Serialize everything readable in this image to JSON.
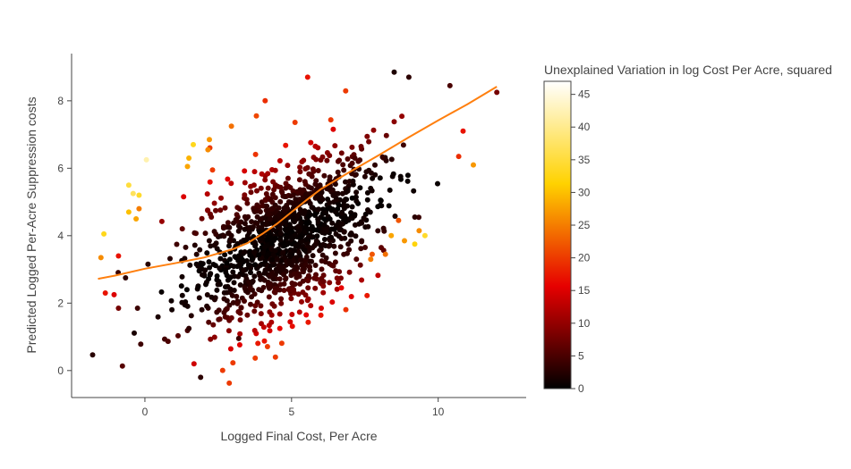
{
  "chart_data": {
    "type": "scatter",
    "xlabel": "Logged Final Cost, Per Acre",
    "ylabel": "Predicted Logged Per-Acre Suppression costs",
    "xlim": [
      -2.5,
      13.0
    ],
    "ylim": [
      -0.8,
      9.4
    ],
    "x_ticks": [
      0,
      5,
      10
    ],
    "y_ticks": [
      0,
      2,
      4,
      6,
      8
    ],
    "grid": false,
    "colorbar": {
      "title": "Unexplained Variation in log Cost Per Acre, squared",
      "range": [
        0,
        47
      ],
      "ticks": [
        0,
        5,
        10,
        15,
        20,
        25,
        30,
        35,
        40,
        45
      ],
      "colorscale": [
        "#000000",
        "#e60000",
        "#ffd200",
        "#ffffff"
      ]
    },
    "trend_line": {
      "color": "#ff7f0e",
      "x": [
        -1.6,
        -1.0,
        0.0,
        1.0,
        2.0,
        3.0,
        3.5,
        4.0,
        4.5,
        5.0,
        5.5,
        6.0,
        7.0,
        8.0,
        9.0,
        10.0,
        11.0,
        12.0
      ],
      "y": [
        2.72,
        2.82,
        3.02,
        3.18,
        3.35,
        3.6,
        3.78,
        4.05,
        4.35,
        4.7,
        5.05,
        5.38,
        5.9,
        6.4,
        6.92,
        7.42,
        7.9,
        8.42
      ]
    },
    "highlighted_points": [
      {
        "x": -1.5,
        "y": 3.35,
        "c": 26
      },
      {
        "x": -1.4,
        "y": 4.05,
        "c": 33
      },
      {
        "x": -1.35,
        "y": 2.3,
        "c": 17
      },
      {
        "x": -1.05,
        "y": 2.25,
        "c": 15
      },
      {
        "x": -0.9,
        "y": 1.85,
        "c": 8
      },
      {
        "x": -0.9,
        "y": 3.4,
        "c": 17
      },
      {
        "x": -0.55,
        "y": 5.5,
        "c": 35
      },
      {
        "x": -0.55,
        "y": 4.7,
        "c": 30
      },
      {
        "x": -0.4,
        "y": 5.25,
        "c": 37
      },
      {
        "x": -0.2,
        "y": 5.2,
        "c": 34
      },
      {
        "x": -0.3,
        "y": 4.5,
        "c": 28
      },
      {
        "x": -0.2,
        "y": 4.8,
        "c": 25
      },
      {
        "x": 0.05,
        "y": 6.25,
        "c": 42
      },
      {
        "x": -0.25,
        "y": 1.85,
        "c": 4
      },
      {
        "x": 1.45,
        "y": 6.05,
        "c": 28
      },
      {
        "x": 1.5,
        "y": 6.3,
        "c": 29
      },
      {
        "x": 1.65,
        "y": 6.7,
        "c": 33
      },
      {
        "x": 2.2,
        "y": 6.85,
        "c": 27
      },
      {
        "x": 2.15,
        "y": 6.55,
        "c": 26
      },
      {
        "x": 2.95,
        "y": 7.25,
        "c": 24
      },
      {
        "x": 3.8,
        "y": 7.55,
        "c": 21
      },
      {
        "x": 4.1,
        "y": 8.0,
        "c": 19
      },
      {
        "x": 5.55,
        "y": 8.7,
        "c": 17
      },
      {
        "x": 1.9,
        "y": -0.2,
        "c": 3
      },
      {
        "x": 3.2,
        "y": 0.95,
        "c": 4
      },
      {
        "x": 1.5,
        "y": 1.25,
        "c": 3
      },
      {
        "x": 5.5,
        "y": 1.65,
        "c": 16
      },
      {
        "x": 6.7,
        "y": 2.45,
        "c": 16
      },
      {
        "x": 7.7,
        "y": 3.3,
        "c": 25
      },
      {
        "x": 7.75,
        "y": 3.45,
        "c": 22
      },
      {
        "x": 8.2,
        "y": 3.45,
        "c": 24
      },
      {
        "x": 8.4,
        "y": 4.0,
        "c": 28
      },
      {
        "x": 8.65,
        "y": 4.45,
        "c": 22
      },
      {
        "x": 8.85,
        "y": 3.85,
        "c": 27
      },
      {
        "x": 9.2,
        "y": 3.75,
        "c": 32
      },
      {
        "x": 9.35,
        "y": 4.15,
        "c": 26
      },
      {
        "x": 9.55,
        "y": 4.0,
        "c": 34
      },
      {
        "x": 10.7,
        "y": 6.35,
        "c": 19
      },
      {
        "x": 10.85,
        "y": 7.1,
        "c": 17
      },
      {
        "x": 11.2,
        "y": 6.1,
        "c": 27
      },
      {
        "x": 12.0,
        "y": 8.25,
        "c": 8
      },
      {
        "x": 10.4,
        "y": 8.45,
        "c": 5
      },
      {
        "x": 8.5,
        "y": 8.85,
        "c": 2
      },
      {
        "x": 9.0,
        "y": 8.7,
        "c": 3
      }
    ],
    "dense_cloud": {
      "n_points": 1250,
      "x_center": 4.7,
      "x_spread": 2.6,
      "slope": 0.39,
      "intercept": 2.05,
      "residual_spread": 1.05
    }
  }
}
